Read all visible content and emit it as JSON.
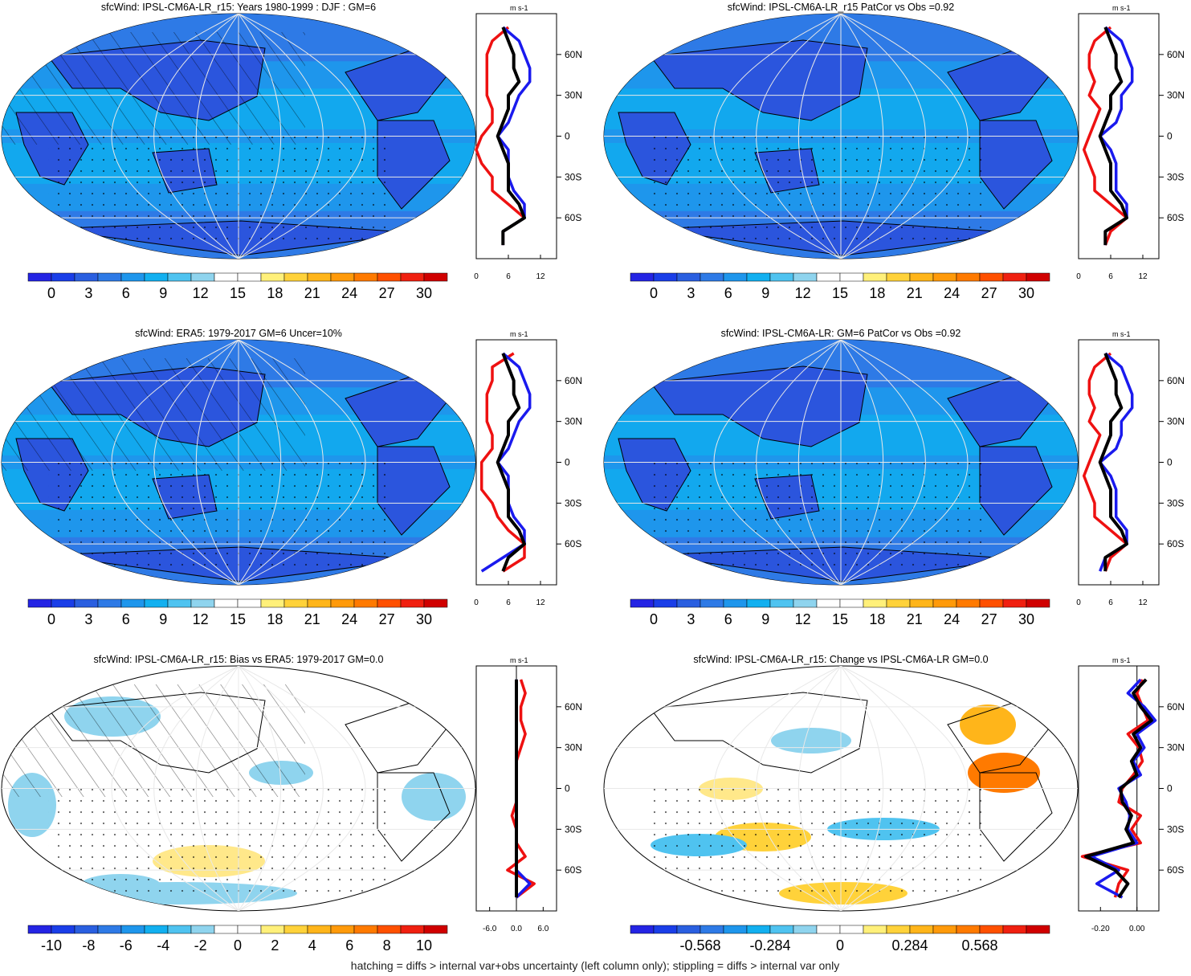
{
  "units": "m s-1",
  "footer": "hatching = diffs > internal var+obs uncertainty (left column only); stippling = diffs > internal var only",
  "colors": {
    "zonal_model": "#000000",
    "zonal_high": "#1a1aee",
    "zonal_low": "#ee1111",
    "ocean_base": "#1a99ee",
    "land_base": "#2b55dd",
    "graticule": "#e8e8e8"
  },
  "colormap": [
    "#2424e4",
    "#1a3ee8",
    "#2a5fe0",
    "#2e7ae6",
    "#1e96ec",
    "#12b0f0",
    "#4fc3f0",
    "#8fd4ee",
    "#ffffff",
    "#ffffff",
    "#fff07a",
    "#ffd23a",
    "#ffb51a",
    "#ff9a0a",
    "#ff7a00",
    "#ff5000",
    "#f02010",
    "#d00000"
  ],
  "lat_labels": [
    "60N",
    "30N",
    "0",
    "30S",
    "60S"
  ],
  "lat_values": [
    60,
    30,
    0,
    -30,
    -60
  ],
  "chart_data": [
    {
      "type": "heatmap",
      "title": "sfcWind: IPSL-CM6A-LR_r15: Years 1980-1999 : DJF : GM=6",
      "colorbar_labels": [
        "0",
        "3",
        "6",
        "9",
        "12",
        "15",
        "18",
        "21",
        "24",
        "27",
        "30"
      ],
      "zonal_xticks": [
        "0",
        "6",
        "12"
      ],
      "zonal_xrange": [
        0,
        15
      ],
      "zonal_series": [
        {
          "color": "black",
          "lat": [
            -80,
            -70,
            -60,
            -50,
            -40,
            -30,
            -20,
            -10,
            0,
            10,
            20,
            30,
            40,
            50,
            60,
            70,
            80
          ],
          "values": [
            5,
            5,
            9,
            8,
            6,
            6,
            6,
            5,
            4,
            5,
            6,
            6,
            8,
            7,
            7,
            6,
            5
          ]
        },
        {
          "color": "blue",
          "lat": [
            -80,
            -70,
            -60,
            -50,
            -40,
            -30,
            -20,
            -10,
            0,
            10,
            20,
            30,
            40,
            50,
            60,
            70,
            80
          ],
          "values": [
            5,
            5,
            9,
            9,
            7,
            6,
            6,
            6,
            4,
            6,
            7,
            8,
            10,
            10,
            9,
            8,
            5
          ]
        },
        {
          "color": "red",
          "lat": [
            -80,
            -70,
            -60,
            -50,
            -40,
            -30,
            -20,
            -10,
            0,
            10,
            20,
            30,
            40,
            50,
            60,
            70,
            80
          ],
          "values": [
            5,
            5,
            9,
            6,
            3,
            3,
            1,
            0,
            1,
            3,
            3,
            2,
            2,
            2,
            2,
            3,
            6
          ]
        }
      ]
    },
    {
      "type": "heatmap",
      "title": "sfcWind: IPSL-CM6A-LR_r15 PatCor vs Obs =0.92",
      "colorbar_labels": [
        "0",
        "3",
        "6",
        "9",
        "12",
        "15",
        "18",
        "21",
        "24",
        "27",
        "30"
      ],
      "zonal_xticks": [
        "0",
        "6",
        "12"
      ],
      "zonal_xrange": [
        0,
        15
      ],
      "zonal_series": [
        {
          "color": "black",
          "lat": [
            -80,
            -70,
            -60,
            -50,
            -40,
            -30,
            -20,
            -10,
            0,
            10,
            20,
            30,
            40,
            50,
            60,
            70,
            80
          ],
          "values": [
            5,
            5,
            9,
            8,
            6,
            6,
            6,
            5,
            4,
            5,
            6,
            6,
            8,
            7,
            7,
            6,
            5
          ]
        },
        {
          "color": "blue",
          "lat": [
            -80,
            -70,
            -60,
            -50,
            -40,
            -30,
            -20,
            -10,
            0,
            10,
            20,
            30,
            40,
            50,
            60,
            70,
            80
          ],
          "values": [
            5,
            5,
            9,
            9,
            7,
            7,
            7,
            6,
            4,
            7,
            8,
            8,
            10,
            10,
            9,
            8,
            5
          ]
        },
        {
          "color": "red",
          "lat": [
            -80,
            -70,
            -60,
            -50,
            -40,
            -30,
            -20,
            -10,
            0,
            10,
            20,
            30,
            40,
            50,
            60,
            70,
            80
          ],
          "values": [
            5,
            6,
            9,
            6,
            3,
            3,
            2,
            1,
            2,
            3,
            4,
            2,
            3,
            2,
            2,
            3,
            6
          ]
        }
      ]
    },
    {
      "type": "heatmap",
      "title": "sfcWind: ERA5: 1979-2017 GM=6 Uncer=10%",
      "colorbar_labels": [
        "0",
        "3",
        "6",
        "9",
        "12",
        "15",
        "18",
        "21",
        "24",
        "27",
        "30"
      ],
      "zonal_xticks": [
        "0",
        "6",
        "12"
      ],
      "zonal_xrange": [
        0,
        15
      ],
      "zonal_series": [
        {
          "color": "black",
          "lat": [
            -80,
            -70,
            -60,
            -50,
            -40,
            -30,
            -20,
            -10,
            0,
            10,
            20,
            30,
            40,
            50,
            60,
            70,
            80
          ],
          "values": [
            5,
            6,
            9,
            8,
            6,
            6,
            6,
            5,
            4,
            5,
            6,
            6,
            8,
            7,
            7,
            6,
            5
          ]
        },
        {
          "color": "blue",
          "lat": [
            -80,
            -70,
            -60,
            -50,
            -40,
            -30,
            -20,
            -10,
            0,
            10,
            20,
            30,
            40,
            50,
            60,
            70,
            80
          ],
          "values": [
            1,
            5,
            9,
            9,
            7,
            6,
            6,
            6,
            4,
            6,
            7,
            8,
            10,
            10,
            9,
            8,
            5
          ]
        },
        {
          "color": "red",
          "lat": [
            -80,
            -70,
            -60,
            -50,
            -40,
            -30,
            -20,
            -10,
            0,
            10,
            20,
            30,
            40,
            50,
            60,
            70,
            80
          ],
          "values": [
            5,
            9,
            9,
            6,
            4,
            3,
            1,
            1,
            1,
            3,
            3,
            2,
            2,
            2,
            3,
            3,
            7
          ]
        }
      ]
    },
    {
      "type": "heatmap",
      "title": "sfcWind: IPSL-CM6A-LR: GM=6 PatCor vs Obs =0.92",
      "colorbar_labels": [
        "0",
        "3",
        "6",
        "9",
        "12",
        "15",
        "18",
        "21",
        "24",
        "27",
        "30"
      ],
      "zonal_xticks": [
        "0",
        "6",
        "12"
      ],
      "zonal_xrange": [
        0,
        15
      ],
      "zonal_series": [
        {
          "color": "black",
          "lat": [
            -80,
            -70,
            -60,
            -50,
            -40,
            -30,
            -20,
            -10,
            0,
            10,
            20,
            30,
            40,
            50,
            60,
            70,
            80
          ],
          "values": [
            5,
            5,
            9,
            8,
            6,
            6,
            6,
            5,
            4,
            5,
            6,
            6,
            8,
            7,
            7,
            6,
            5
          ]
        },
        {
          "color": "blue",
          "lat": [
            -80,
            -70,
            -60,
            -50,
            -40,
            -30,
            -20,
            -10,
            0,
            10,
            20,
            30,
            40,
            50,
            60,
            70,
            80
          ],
          "values": [
            4,
            5,
            9,
            9,
            7,
            7,
            7,
            6,
            4,
            7,
            8,
            8,
            10,
            10,
            9,
            8,
            5
          ]
        },
        {
          "color": "red",
          "lat": [
            -80,
            -70,
            -60,
            -50,
            -40,
            -30,
            -20,
            -10,
            0,
            10,
            20,
            30,
            40,
            50,
            60,
            70,
            80
          ],
          "values": [
            5,
            6,
            9,
            6,
            3,
            3,
            2,
            1,
            2,
            3,
            4,
            2,
            3,
            2,
            2,
            3,
            6
          ]
        }
      ]
    },
    {
      "type": "heatmap",
      "title": "sfcWind: IPSL-CM6A-LR_r15: Bias vs ERA5: 1979-2017 GM=0.0",
      "colorbar_labels": [
        "-10",
        "-8",
        "-6",
        "-4",
        "-2",
        "0",
        "2",
        "4",
        "6",
        "8",
        "10"
      ],
      "zonal_xticks": [
        "-6.0",
        "0.0",
        "6.0"
      ],
      "zonal_xrange": [
        -9,
        9
      ],
      "zonal_series": [
        {
          "color": "black",
          "lat": [
            -80,
            -70,
            -60,
            -50,
            -40,
            -30,
            -20,
            -10,
            0,
            10,
            20,
            30,
            40,
            50,
            60,
            70,
            80
          ],
          "values": [
            0,
            0,
            0,
            0,
            0,
            0,
            0,
            0,
            0,
            0,
            0,
            0,
            0,
            0,
            0,
            0,
            0
          ]
        },
        {
          "color": "blue",
          "lat": [
            -80,
            -70,
            -60,
            -50,
            -40,
            -30,
            -20,
            -10,
            0,
            10,
            20,
            30,
            40,
            50,
            60,
            70,
            80
          ],
          "values": [
            0,
            3,
            0,
            0,
            0,
            0,
            0,
            0,
            0,
            0,
            0,
            0,
            0,
            0,
            0,
            0,
            0
          ]
        },
        {
          "color": "red",
          "lat": [
            -80,
            -70,
            -60,
            -50,
            -40,
            -30,
            -20,
            -10,
            0,
            10,
            20,
            30,
            40,
            50,
            60,
            70,
            80
          ],
          "values": [
            0,
            4,
            -2,
            2,
            0,
            0,
            -1,
            0,
            0,
            0,
            0,
            1,
            2,
            1,
            1,
            2,
            1
          ]
        }
      ]
    },
    {
      "type": "heatmap",
      "title": "sfcWind: IPSL-CM6A-LR_r15: Change vs IPSL-CM6A-LR GM=0.0",
      "colorbar_labels": [
        "-0.568",
        "-0.284",
        "0",
        "0.284",
        "0.568"
      ],
      "zonal_xticks": [
        "-0.20",
        "0.00"
      ],
      "zonal_xrange": [
        -0.32,
        0.12
      ],
      "zonal_series": [
        {
          "color": "black",
          "lat": [
            -80,
            -70,
            -60,
            -50,
            -40,
            -30,
            -20,
            -10,
            0,
            10,
            20,
            30,
            40,
            50,
            60,
            70,
            80
          ],
          "values": [
            -0.1,
            -0.05,
            -0.12,
            -0.28,
            -0.02,
            -0.06,
            -0.03,
            -0.08,
            -0.09,
            0.0,
            -0.03,
            0.02,
            -0.02,
            0.08,
            0.02,
            -0.02,
            0.05
          ]
        },
        {
          "color": "blue",
          "lat": [
            -80,
            -70,
            -60,
            -50,
            -40,
            -30,
            -20,
            -10,
            0,
            10,
            20,
            30,
            40,
            50,
            60,
            70,
            80
          ],
          "values": [
            -0.08,
            -0.22,
            -0.1,
            -0.25,
            0.0,
            -0.05,
            -0.04,
            -0.06,
            -0.1,
            0.02,
            -0.02,
            0.04,
            0.0,
            0.1,
            0.04,
            -0.05,
            0.02
          ]
        },
        {
          "color": "red",
          "lat": [
            -80,
            -70,
            -60,
            -50,
            -40,
            -30,
            -20,
            -10,
            0,
            10,
            20,
            30,
            40,
            50,
            60,
            70,
            80
          ],
          "values": [
            -0.12,
            -0.1,
            -0.05,
            -0.3,
            0.02,
            -0.03,
            0.02,
            -0.1,
            -0.08,
            -0.02,
            0.03,
            0.01,
            -0.05,
            0.06,
            0.03,
            0.0,
            0.03
          ]
        }
      ]
    }
  ]
}
